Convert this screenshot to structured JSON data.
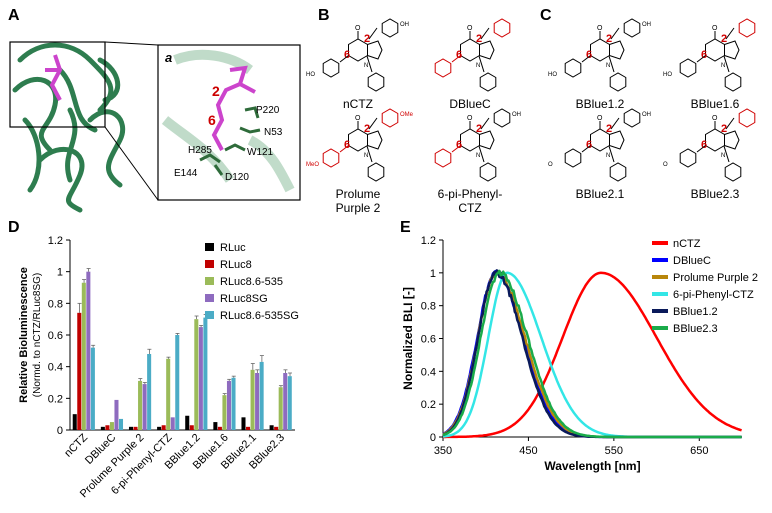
{
  "panels": {
    "a": "A",
    "b": "B",
    "c": "C",
    "d": "D",
    "e": "E",
    "inset": "a"
  },
  "protein": {
    "residues": [
      "P220",
      "N53",
      "W121",
      "H285",
      "E144",
      "D120"
    ],
    "numbers": [
      "2",
      "6"
    ],
    "colors": {
      "ribbon": "#3a8a5a",
      "ribbon_light": "#9fc8ad",
      "ligand": "#cc44cc"
    }
  },
  "molecules_b": [
    {
      "name": "nCTZ",
      "r2": "OH",
      "r6": "HO"
    },
    {
      "name": "DBlueC"
    },
    {
      "name": "Prolume\nPurple 2",
      "r2": "OMe",
      "r6": "MeO"
    },
    {
      "name": "6-pi-Phenyl-\nCTZ",
      "r2": "OH"
    }
  ],
  "molecules_c": [
    {
      "name": "BBlue1.2",
      "r2": "OH",
      "r6": "HO"
    },
    {
      "name": "BBlue1.6",
      "r6": "HO"
    },
    {
      "name": "BBlue2.1",
      "r2": "OH",
      "r6": "O"
    },
    {
      "name": "BBlue2.3",
      "r6": "O"
    }
  ],
  "chart_data": [
    {
      "type": "bar",
      "panel": "D",
      "ylabel": "Relative Bioluminescence\n(Normd. to nCTZ/RLuc8SG)",
      "ylim": [
        0,
        1.2
      ],
      "yticks": [
        "0",
        "0.2",
        "0.4",
        "0.6",
        "0.8",
        "1",
        "1.2"
      ],
      "categories": [
        "nCTZ",
        "DBlueC",
        "Prolume Purple 2",
        "6-pi-Phenyl-CTZ",
        "BBlue1.2",
        "BBlue1.6",
        "BBlue2.1",
        "BBlue2.3"
      ],
      "series": [
        {
          "name": "RLuc",
          "color": "#000000",
          "values": [
            0.1,
            0.02,
            0.02,
            0.02,
            0.09,
            0.05,
            0.08,
            0.03
          ]
        },
        {
          "name": "RLuc8",
          "color": "#c00000",
          "values": [
            0.74,
            0.03,
            0.02,
            0.03,
            0.03,
            0.02,
            0.02,
            0.02
          ]
        },
        {
          "name": "RLuc8.6-535",
          "color": "#9bbb59",
          "values": [
            0.93,
            0.05,
            0.31,
            0.45,
            0.7,
            0.22,
            0.38,
            0.27
          ]
        },
        {
          "name": "RLuc8SG",
          "color": "#8e6bbf",
          "values": [
            1.0,
            0.19,
            0.29,
            0.08,
            0.65,
            0.31,
            0.36,
            0.36
          ]
        },
        {
          "name": "RLuc8.6-535SG",
          "color": "#4bacc6",
          "values": [
            0.52,
            0.07,
            0.48,
            0.6,
            0.71,
            0.33,
            0.43,
            0.34
          ]
        }
      ],
      "errors": [
        [
          0.005,
          0.005,
          0.005,
          0.005,
          0.005,
          0.005,
          0.005,
          0.005
        ],
        [
          0.06,
          0.005,
          0.005,
          0.005,
          0.005,
          0.005,
          0.005,
          0.005
        ],
        [
          0.02,
          0.005,
          0.015,
          0.01,
          0.02,
          0.01,
          0.04,
          0.01
        ],
        [
          0.02,
          0.005,
          0.01,
          0.005,
          0.01,
          0.01,
          0.02,
          0.02
        ],
        [
          0.015,
          0.005,
          0.03,
          0.01,
          0.02,
          0.01,
          0.04,
          0.02
        ]
      ],
      "legend_position": "top-right",
      "grid": false
    },
    {
      "type": "line",
      "panel": "E",
      "xlabel": "Wavelength [nm]",
      "ylabel": "Normalized BLI [-]",
      "xlim": [
        350,
        700
      ],
      "ylim": [
        0,
        1.2
      ],
      "xticks": [
        "350",
        "450",
        "550",
        "650"
      ],
      "yticks": [
        "0",
        "0.2",
        "0.4",
        "0.6",
        "0.8",
        "1",
        "1.2"
      ],
      "series": [
        {
          "name": "nCTZ",
          "color": "#ff0000",
          "peak": 535,
          "left_sigma": 45,
          "right_sigma": 65
        },
        {
          "name": "DBlueC",
          "color": "#0000ff",
          "peak": 412,
          "left_sigma": 22,
          "right_sigma": 32
        },
        {
          "name": "Prolume Purple 2",
          "color": "#b8860b",
          "peak": 413,
          "left_sigma": 22,
          "right_sigma": 33
        },
        {
          "name": "6-pi-Phenyl-CTZ",
          "color": "#33e6e6",
          "peak": 425,
          "left_sigma": 22,
          "right_sigma": 40
        },
        {
          "name": "BBlue1.2",
          "color": "#0a1a5a",
          "peak": 412,
          "left_sigma": 21,
          "right_sigma": 31
        },
        {
          "name": "BBlue2.3",
          "color": "#1aab4a",
          "peak": 416,
          "left_sigma": 22,
          "right_sigma": 33
        }
      ],
      "legend_position": "top-right",
      "grid": false
    }
  ]
}
